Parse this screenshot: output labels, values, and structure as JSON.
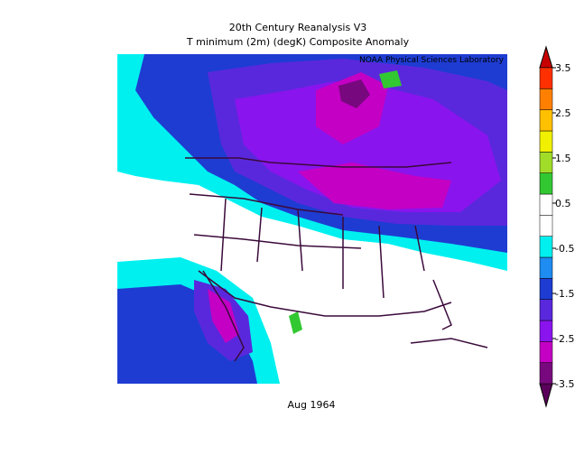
{
  "title": "20th Century Reanalysis V3",
  "subtitle": "T minimum (2m) (degK) Composite Anomaly",
  "credit": "NOAA Physical Sciences Laboratory",
  "date": "Aug 1964",
  "colorbar": {
    "lim": [
      -3.5,
      3.5
    ],
    "ticks": [
      -3.5,
      -2.5,
      -1.5,
      -0.5,
      0.5,
      1.5,
      2.5,
      3.5
    ],
    "colors": [
      "#5a005a",
      "#78087e",
      "#c400c4",
      "#8a14ee",
      "#5a28dc",
      "#1e3cd2",
      "#1e8cf0",
      "#00f0f0",
      "#ffffff",
      "#ffffff",
      "#32c832",
      "#a0dc28",
      "#f0f000",
      "#ffc000",
      "#ff8000",
      "#ff3000",
      "#c80000"
    ]
  }
}
